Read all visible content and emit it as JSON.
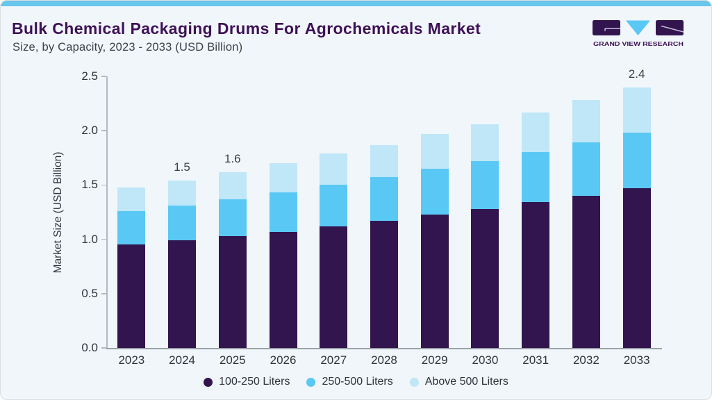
{
  "header": {
    "title": "Bulk Chemical Packaging Drums For Agrochemicals Market",
    "subtitle": "Size, by Capacity, 2023 - 2033 (USD Billion)"
  },
  "logo": {
    "text": "GRAND VIEW RESEARCH"
  },
  "colors": {
    "accent_bar": "#68c5ec",
    "card_background": "#f0f6fa",
    "title_purple": "#3e1156",
    "text_gray": "#2f343a",
    "axis_gray": "#9aa1a7",
    "series1_dark_purple": "#32154e",
    "series2_mid_blue": "#5ac8f4",
    "series3_light_blue": "#bfe7f8"
  },
  "chart_data": {
    "type": "bar",
    "stacked": true,
    "title": "Bulk Chemical Packaging Drums For Agrochemicals Market",
    "subtitle": "Size, by Capacity, 2023 - 2033 (USD Billion)",
    "xlabel": "",
    "ylabel": "Market Size (USD Billion)",
    "ylim": [
      0,
      2.5
    ],
    "yticks": [
      "0.0",
      "0.5",
      "1.0",
      "1.5",
      "2.0",
      "2.5"
    ],
    "grid": false,
    "legend_position": "bottom",
    "categories": [
      "2023",
      "2024",
      "2025",
      "2026",
      "2027",
      "2028",
      "2029",
      "2030",
      "2031",
      "2032",
      "2033"
    ],
    "series": [
      {
        "name": "100-250 Liters",
        "color": "#32154e",
        "values": [
          0.95,
          0.99,
          1.03,
          1.07,
          1.12,
          1.17,
          1.23,
          1.28,
          1.34,
          1.4,
          1.47
        ]
      },
      {
        "name": "250-500 Liters",
        "color": "#5ac8f4",
        "values": [
          0.31,
          0.32,
          0.34,
          0.36,
          0.38,
          0.4,
          0.42,
          0.44,
          0.46,
          0.49,
          0.51
        ]
      },
      {
        "name": "Above 500 Liters",
        "color": "#bfe7f8",
        "values": [
          0.22,
          0.23,
          0.25,
          0.27,
          0.29,
          0.3,
          0.32,
          0.34,
          0.37,
          0.39,
          0.42
        ]
      }
    ],
    "totals": [
      1.48,
      1.54,
      1.62,
      1.7,
      1.79,
      1.87,
      1.97,
      2.06,
      2.17,
      2.28,
      2.4
    ],
    "bar_total_labels": [
      "",
      "1.5",
      "1.6",
      "",
      "",
      "",
      "",
      "",
      "",
      "",
      "2.4"
    ]
  }
}
